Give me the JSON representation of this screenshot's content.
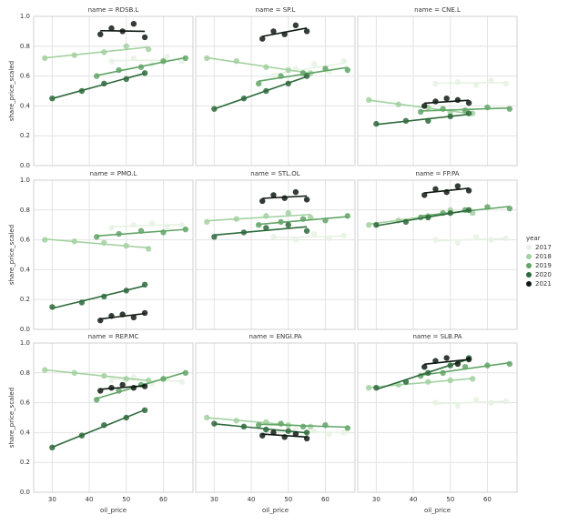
{
  "chart_data": {
    "type": "scatter",
    "xlabel": "oil_price",
    "ylabel": "share_price_scaled",
    "xlim": [
      25,
      68
    ],
    "ylim": [
      0,
      1
    ],
    "xticks": [
      30,
      40,
      50,
      60
    ],
    "yticks": [
      {
        "value": 0,
        "label": "0.0"
      },
      0.2,
      0.4,
      0.6,
      0.8,
      {
        "value": 1,
        "label": "1.0"
      }
    ],
    "grid": true,
    "regression": true,
    "legend_title": "year",
    "legend_position": "right",
    "legend": [
      {
        "name": "2017",
        "color": "#e6f2e3"
      },
      {
        "name": "2018",
        "color": "#a3d1a0"
      },
      {
        "name": "2019",
        "color": "#62a566"
      },
      {
        "name": "2020",
        "color": "#2d6a3b"
      },
      {
        "name": "2021",
        "color": "#0f1a12"
      }
    ],
    "facets": [
      {
        "title": "name = RDSB.L",
        "series": [
          {
            "x": [
              46,
              52,
              57,
              61,
              65
            ],
            "values": [
              0.7,
              0.72,
              0.68,
              0.73,
              0.7
            ]
          },
          {
            "x": [
              28,
              36,
              44,
              50,
              56
            ],
            "values": [
              0.72,
              0.74,
              0.76,
              0.8,
              0.78
            ]
          },
          {
            "x": [
              42,
              48,
              54,
              60,
              66
            ],
            "values": [
              0.6,
              0.64,
              0.66,
              0.7,
              0.72
            ]
          },
          {
            "x": [
              30,
              38,
              44,
              50,
              55
            ],
            "values": [
              0.45,
              0.5,
              0.55,
              0.58,
              0.62
            ]
          },
          {
            "x": [
              43,
              46,
              49,
              52,
              55
            ],
            "values": [
              0.88,
              0.92,
              0.9,
              0.95,
              0.86
            ]
          }
        ]
      },
      {
        "title": "name = SP.L",
        "series": [
          {
            "x": [
              46,
              52,
              57,
              61,
              65
            ],
            "values": [
              0.6,
              0.65,
              0.68,
              0.63,
              0.7
            ]
          },
          {
            "x": [
              28,
              36,
              44,
              50,
              56
            ],
            "values": [
              0.72,
              0.7,
              0.66,
              0.64,
              0.62
            ]
          },
          {
            "x": [
              42,
              48,
              54,
              60,
              66
            ],
            "values": [
              0.55,
              0.6,
              0.62,
              0.65,
              0.64
            ]
          },
          {
            "x": [
              30,
              38,
              44,
              50,
              55
            ],
            "values": [
              0.38,
              0.45,
              0.5,
              0.55,
              0.6
            ]
          },
          {
            "x": [
              43,
              46,
              49,
              52,
              55
            ],
            "values": [
              0.85,
              0.9,
              0.88,
              0.94,
              0.9
            ]
          }
        ]
      },
      {
        "title": "name = CNE.L",
        "series": [
          {
            "x": [
              46,
              52,
              57,
              61,
              65
            ],
            "values": [
              0.55,
              0.56,
              0.54,
              0.57,
              0.55
            ]
          },
          {
            "x": [
              28,
              36,
              44,
              50,
              56
            ],
            "values": [
              0.44,
              0.41,
              0.39,
              0.36,
              0.35
            ]
          },
          {
            "x": [
              42,
              48,
              54,
              60,
              66
            ],
            "values": [
              0.36,
              0.38,
              0.37,
              0.39,
              0.38
            ]
          },
          {
            "x": [
              30,
              38,
              44,
              50,
              55
            ],
            "values": [
              0.28,
              0.3,
              0.3,
              0.33,
              0.35
            ]
          },
          {
            "x": [
              43,
              46,
              49,
              52,
              55
            ],
            "values": [
              0.4,
              0.43,
              0.45,
              0.44,
              0.42
            ]
          }
        ]
      },
      {
        "title": "name = PMO.L",
        "series": [
          {
            "x": [
              46,
              52,
              57,
              61,
              65
            ],
            "values": [
              0.68,
              0.7,
              0.71,
              0.69,
              0.7
            ]
          },
          {
            "x": [
              28,
              36,
              44,
              50,
              56
            ],
            "values": [
              0.6,
              0.59,
              0.58,
              0.56,
              0.54
            ]
          },
          {
            "x": [
              42,
              48,
              54,
              60,
              66
            ],
            "values": [
              0.62,
              0.64,
              0.66,
              0.65,
              0.67
            ]
          },
          {
            "x": [
              30,
              38,
              44,
              50,
              55
            ],
            "values": [
              0.15,
              0.18,
              0.22,
              0.26,
              0.3
            ]
          },
          {
            "x": [
              43,
              46,
              49,
              52,
              55
            ],
            "values": [
              0.06,
              0.09,
              0.1,
              0.08,
              0.11
            ]
          }
        ]
      },
      {
        "title": "name = STL.OL",
        "series": [
          {
            "x": [
              46,
              52,
              57,
              61,
              65
            ],
            "values": [
              0.62,
              0.6,
              0.64,
              0.61,
              0.63
            ]
          },
          {
            "x": [
              28,
              36,
              44,
              50,
              56
            ],
            "values": [
              0.72,
              0.74,
              0.76,
              0.78,
              0.75
            ]
          },
          {
            "x": [
              42,
              48,
              54,
              60,
              66
            ],
            "values": [
              0.7,
              0.72,
              0.74,
              0.73,
              0.76
            ]
          },
          {
            "x": [
              30,
              38,
              44,
              50,
              55
            ],
            "values": [
              0.62,
              0.65,
              0.68,
              0.7,
              0.66
            ]
          },
          {
            "x": [
              43,
              46,
              49,
              52,
              55
            ],
            "values": [
              0.86,
              0.9,
              0.88,
              0.92,
              0.87
            ]
          }
        ]
      },
      {
        "title": "name = FP.PA",
        "series": [
          {
            "x": [
              46,
              52,
              57,
              61,
              65
            ],
            "values": [
              0.6,
              0.58,
              0.62,
              0.6,
              0.61
            ]
          },
          {
            "x": [
              28,
              36,
              44,
              50,
              56
            ],
            "values": [
              0.7,
              0.73,
              0.76,
              0.8,
              0.78
            ]
          },
          {
            "x": [
              42,
              48,
              54,
              60,
              66
            ],
            "values": [
              0.75,
              0.78,
              0.8,
              0.82,
              0.81
            ]
          },
          {
            "x": [
              30,
              38,
              44,
              50,
              55
            ],
            "values": [
              0.7,
              0.72,
              0.75,
              0.78,
              0.8
            ]
          },
          {
            "x": [
              43,
              46,
              49,
              52,
              55
            ],
            "values": [
              0.9,
              0.94,
              0.92,
              0.96,
              0.93
            ]
          }
        ]
      },
      {
        "title": "name = REP.MC",
        "series": [
          {
            "x": [
              46,
              52,
              57,
              61,
              65
            ],
            "values": [
              0.75,
              0.77,
              0.73,
              0.76,
              0.74
            ]
          },
          {
            "x": [
              28,
              36,
              44,
              50,
              56
            ],
            "values": [
              0.82,
              0.8,
              0.78,
              0.76,
              0.75
            ]
          },
          {
            "x": [
              42,
              48,
              54,
              60,
              66
            ],
            "values": [
              0.62,
              0.68,
              0.72,
              0.76,
              0.8
            ]
          },
          {
            "x": [
              30,
              38,
              44,
              50,
              55
            ],
            "values": [
              0.3,
              0.38,
              0.45,
              0.5,
              0.55
            ]
          },
          {
            "x": [
              43,
              46,
              49,
              52,
              55
            ],
            "values": [
              0.68,
              0.7,
              0.72,
              0.7,
              0.71
            ]
          }
        ]
      },
      {
        "title": "name = ENGI.PA",
        "series": [
          {
            "x": [
              46,
              52,
              57,
              61,
              65
            ],
            "values": [
              0.4,
              0.42,
              0.41,
              0.39,
              0.4
            ]
          },
          {
            "x": [
              28,
              36,
              44,
              50,
              56
            ],
            "values": [
              0.5,
              0.48,
              0.47,
              0.45,
              0.44
            ]
          },
          {
            "x": [
              42,
              48,
              54,
              60,
              66
            ],
            "values": [
              0.45,
              0.46,
              0.44,
              0.45,
              0.43
            ]
          },
          {
            "x": [
              30,
              38,
              44,
              50,
              55
            ],
            "values": [
              0.46,
              0.44,
              0.42,
              0.41,
              0.4
            ]
          },
          {
            "x": [
              43,
              46,
              49,
              52,
              55
            ],
            "values": [
              0.38,
              0.4,
              0.37,
              0.39,
              0.36
            ]
          }
        ]
      },
      {
        "title": "name = SLB.PA",
        "series": [
          {
            "x": [
              46,
              52,
              57,
              61,
              65
            ],
            "values": [
              0.6,
              0.58,
              0.62,
              0.6,
              0.61
            ]
          },
          {
            "x": [
              28,
              36,
              44,
              50,
              56
            ],
            "values": [
              0.7,
              0.72,
              0.74,
              0.75,
              0.76
            ]
          },
          {
            "x": [
              42,
              48,
              54,
              60,
              66
            ],
            "values": [
              0.78,
              0.8,
              0.84,
              0.85,
              0.86
            ]
          },
          {
            "x": [
              30,
              38,
              44,
              50,
              55
            ],
            "values": [
              0.7,
              0.74,
              0.8,
              0.85,
              0.9
            ]
          },
          {
            "x": [
              43,
              46,
              49,
              52,
              55
            ],
            "values": [
              0.84,
              0.88,
              0.9,
              0.86,
              0.89
            ]
          }
        ]
      }
    ]
  }
}
